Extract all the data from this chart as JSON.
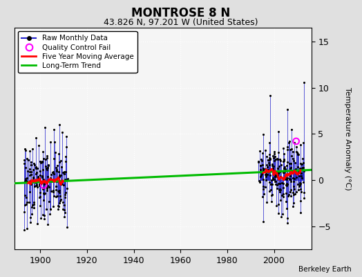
{
  "title": "MONTROSE 8 N",
  "subtitle": "43.826 N, 97.201 W (United States)",
  "credit": "Berkeley Earth",
  "xlim": [
    1889,
    2016
  ],
  "ylim": [
    -7.5,
    16.5
  ],
  "yticks": [
    -5,
    0,
    5,
    10,
    15
  ],
  "xticks": [
    1900,
    1920,
    1940,
    1960,
    1980,
    2000
  ],
  "ylabel_right": "Temperature Anomaly (°C)",
  "bg_color": "#e0e0e0",
  "plot_bg_color": "#f5f5f5",
  "grid_color": "#d0d0d0",
  "trend_x": [
    1889,
    2016
  ],
  "trend_y": [
    -0.35,
    1.1
  ],
  "qc_fail_early": [
    1901.5,
    -0.55
  ],
  "qc_fail_late": [
    2009.5,
    4.2
  ]
}
